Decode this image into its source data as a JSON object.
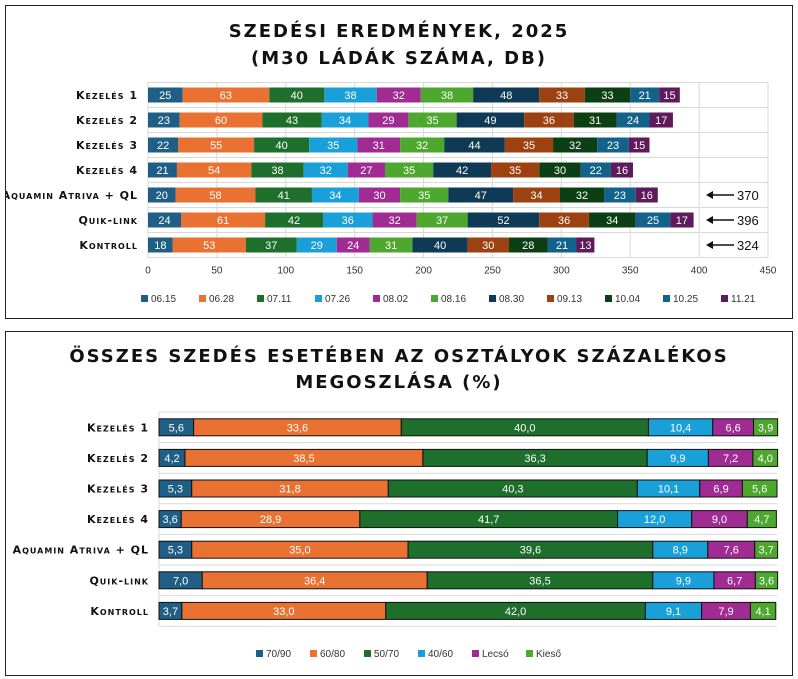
{
  "chart_data": [
    {
      "type": "bar",
      "orientation": "horizontal",
      "stacked": true,
      "title": "SZEDÉSI EREDMÉNYEK, 2025",
      "subtitle": "(M30 LÁDÁK SZÁMA, DB)",
      "categories": [
        "Kezelés 1",
        "Kezelés 2",
        "Kezelés 3",
        "Kezelés 4",
        "Aquamin Atriva + QL",
        "Quik-link",
        "Kontroll"
      ],
      "xlim": [
        0,
        450
      ],
      "xticks": [
        0,
        50,
        100,
        150,
        200,
        250,
        300,
        350,
        400,
        450
      ],
      "grid": true,
      "legend_position": "bottom",
      "series": [
        {
          "name": "06.15",
          "color": "#1f5f86",
          "values": [
            25,
            23,
            22,
            21,
            20,
            24,
            18
          ]
        },
        {
          "name": "06.28",
          "color": "#e97132",
          "values": [
            63,
            60,
            55,
            54,
            58,
            61,
            53
          ]
        },
        {
          "name": "07.11",
          "color": "#1e6e2c",
          "values": [
            40,
            43,
            40,
            38,
            41,
            42,
            37
          ]
        },
        {
          "name": "07.26",
          "color": "#1aa0d8",
          "values": [
            38,
            34,
            35,
            32,
            34,
            36,
            29
          ]
        },
        {
          "name": "08.02",
          "color": "#a02b93",
          "values": [
            32,
            29,
            31,
            27,
            30,
            32,
            24
          ]
        },
        {
          "name": "08.16",
          "color": "#4ea72e",
          "values": [
            38,
            35,
            32,
            35,
            35,
            37,
            31
          ]
        },
        {
          "name": "08.30",
          "color": "#0e3a55",
          "values": [
            48,
            49,
            44,
            42,
            47,
            52,
            40
          ]
        },
        {
          "name": "09.13",
          "color": "#9c4210",
          "values": [
            33,
            36,
            35,
            35,
            34,
            36,
            30
          ]
        },
        {
          "name": "10.04",
          "color": "#0d3f14",
          "values": [
            33,
            31,
            32,
            30,
            32,
            34,
            28
          ]
        },
        {
          "name": "10.25",
          "color": "#13628a",
          "values": [
            21,
            24,
            23,
            22,
            23,
            25,
            21
          ]
        },
        {
          "name": "11.21",
          "color": "#5e1a5a",
          "values": [
            15,
            17,
            15,
            16,
            16,
            17,
            13
          ]
        }
      ],
      "annotations": [
        {
          "category": "Aquamin Atriva + QL",
          "text": "370"
        },
        {
          "category": "Quik-link",
          "text": "396"
        },
        {
          "category": "Kontroll",
          "text": "324"
        }
      ]
    },
    {
      "type": "bar",
      "orientation": "horizontal",
      "stacked": true,
      "title": "ÖSSZES SZEDÉS ESETÉBEN AZ OSZTÁLYOK SZÁZALÉKOS",
      "subtitle": "MEGOSZLÁSA (%)",
      "categories": [
        "Kezelés 1",
        "Kezelés 2",
        "Kezelés 3",
        "Kezelés 4",
        "Aquamin Atriva + QL",
        "Quik-link",
        "Kontroll"
      ],
      "xlim": [
        0,
        100
      ],
      "grid": true,
      "legend_position": "bottom",
      "series": [
        {
          "name": "70/90",
          "color": "#1f5f86",
          "values": [
            5.6,
            4.2,
            5.3,
            3.6,
            5.3,
            7.0,
            3.7
          ]
        },
        {
          "name": "60/80",
          "color": "#e97132",
          "values": [
            33.6,
            38.5,
            31.8,
            28.9,
            35.0,
            36.4,
            33.0
          ]
        },
        {
          "name": "50/70",
          "color": "#1e6e2c",
          "values": [
            40.0,
            36.3,
            40.3,
            41.7,
            39.6,
            36.5,
            42.0
          ]
        },
        {
          "name": "40/60",
          "color": "#1aa0d8",
          "values": [
            10.4,
            9.9,
            10.1,
            12.0,
            8.9,
            9.9,
            9.1
          ]
        },
        {
          "name": "Lecsó",
          "color": "#a02b93",
          "values": [
            6.6,
            7.2,
            6.9,
            9.0,
            7.6,
            6.7,
            7.9
          ]
        },
        {
          "name": "Kieső",
          "color": "#4ea72e",
          "values": [
            3.9,
            4.0,
            5.6,
            4.7,
            3.7,
            3.6,
            4.1
          ]
        }
      ]
    }
  ]
}
